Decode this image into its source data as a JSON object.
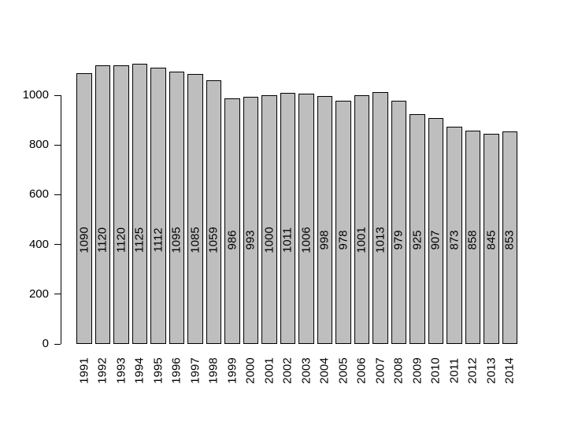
{
  "figure": {
    "background": "#ffffff",
    "colors": {
      "bar_fill": "#bebebe",
      "bar_border": "#000000",
      "text": "#000000"
    },
    "chart_data": {
      "type": "bar",
      "title": "",
      "xlabel": "",
      "ylabel": "",
      "categories": [
        "1991",
        "1992",
        "1993",
        "1994",
        "1995",
        "1996",
        "1997",
        "1998",
        "1999",
        "2000",
        "2001",
        "2002",
        "2003",
        "2004",
        "2005",
        "2006",
        "2007",
        "2008",
        "2009",
        "2010",
        "2011",
        "2012",
        "2013",
        "2014"
      ],
      "values": [
        1090,
        1120,
        1120,
        1125,
        1112,
        1095,
        1085,
        1059,
        986,
        993,
        1000,
        1011,
        1006,
        998,
        978,
        1001,
        1013,
        979,
        925,
        907,
        873,
        858,
        845,
        853
      ],
      "bar_value_labels_shown": true,
      "y_ticks": [
        0,
        200,
        400,
        600,
        800,
        1000
      ],
      "axis_range": [
        0,
        1000
      ],
      "ylim": [
        0,
        1185
      ],
      "grid": false,
      "legend": null,
      "x_label_rotation_degrees": 90,
      "bar_label_rotation_degrees": 90
    }
  }
}
